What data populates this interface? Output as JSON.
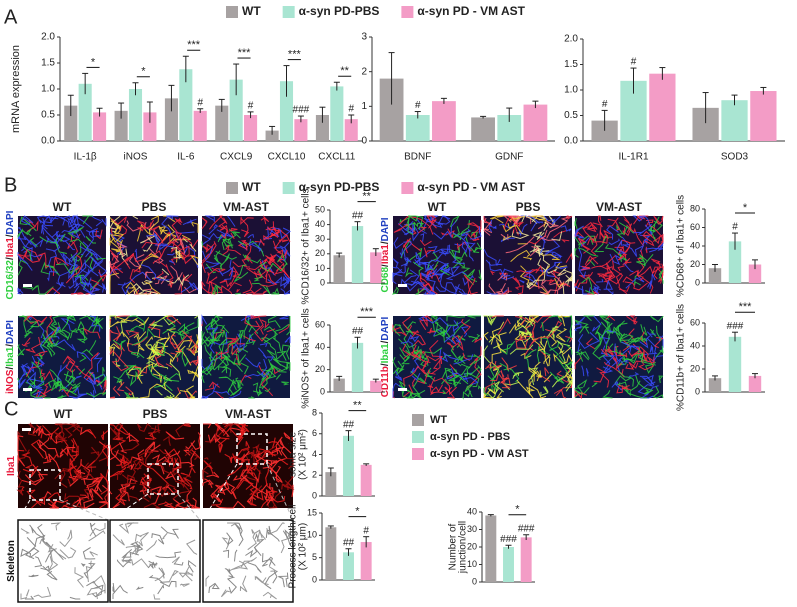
{
  "panels": [
    "A",
    "B",
    "C"
  ],
  "legends": {
    "B": [
      {
        "name": "WT",
        "color": "#a7a2a2"
      },
      {
        "name": "α-syn PD-PBS",
        "color": "#a9e5d2"
      },
      {
        "name": "α-syn PD - VM AST",
        "color": "#f39cc6"
      }
    ],
    "C": [
      {
        "name": "WT",
        "color": "#a7a2a2"
      },
      {
        "name": "α-syn PD - PBS",
        "color": "#a9e5d2"
      },
      {
        "name": "α-syn  PD - VM AST",
        "color": "#f39cc6"
      }
    ]
  },
  "images": {
    "B": {
      "left": {
        "columns": [
          "WT",
          "PBS",
          "VM-AST"
        ],
        "rows": [
          [
            {
              "text": "CD16/32",
              "color": "#2fcf3f"
            },
            {
              "text": "/",
              "color": "#222"
            },
            {
              "text": "Iba1",
              "color": "#e8173a"
            },
            {
              "text": "/",
              "color": "#222"
            },
            {
              "text": "DAPI",
              "color": "#2040c0"
            }
          ],
          [
            {
              "text": "iNOS",
              "color": "#e8173a"
            },
            {
              "text": "/",
              "color": "#222"
            },
            {
              "text": "Iba1",
              "color": "#2fcf3f"
            },
            {
              "text": "/",
              "color": "#222"
            },
            {
              "text": "DAPI",
              "color": "#2040c0"
            }
          ]
        ]
      },
      "right": {
        "columns": [
          "WT",
          "PBS",
          "VM-AST"
        ],
        "rows": [
          [
            {
              "text": "CD68",
              "color": "#2fcf3f"
            },
            {
              "text": "/",
              "color": "#222"
            },
            {
              "text": "Iba1",
              "color": "#e8173a"
            },
            {
              "text": "/",
              "color": "#222"
            },
            {
              "text": "DAPI",
              "color": "#2040c0"
            }
          ],
          [
            {
              "text": "CD11b",
              "color": "#e8173a"
            },
            {
              "text": "/",
              "color": "#222"
            },
            {
              "text": "Iba1",
              "color": "#2fcf3f"
            },
            {
              "text": "/",
              "color": "#222"
            },
            {
              "text": "DAPI",
              "color": "#2040c0"
            }
          ]
        ]
      }
    },
    "C": {
      "columns": [
        "WT",
        "PBS",
        "VM-AST"
      ],
      "rows": [
        [
          {
            "text": "Iba1",
            "color": "#e8173a"
          }
        ],
        [
          {
            "text": "Skeleton",
            "color": "#111"
          }
        ]
      ]
    }
  },
  "chart_data": [
    {
      "type": "bar",
      "ylabel": "mRNA expression",
      "categories": [
        "IL-1β",
        "iNOS",
        "IL-6",
        "CXCL9",
        "CXCL10",
        "CXCL11"
      ],
      "series": [
        {
          "name": "WT",
          "color": "#a7a2a2",
          "values": [
            0.68,
            0.58,
            0.82,
            0.68,
            0.2,
            0.5
          ],
          "errors": [
            0.2,
            0.15,
            0.25,
            0.12,
            0.08,
            0.15
          ]
        },
        {
          "name": "α-syn PD-PBS",
          "color": "#a9e5d2",
          "values": [
            1.1,
            1.0,
            1.38,
            1.18,
            1.15,
            1.05
          ],
          "errors": [
            0.2,
            0.12,
            0.25,
            0.3,
            0.3,
            0.08
          ]
        },
        {
          "name": "α-syn PD - VM AST",
          "color": "#f39cc6",
          "values": [
            0.55,
            0.55,
            0.58,
            0.5,
            0.42,
            0.42
          ],
          "errors": [
            0.08,
            0.2,
            0.04,
            0.06,
            0.06,
            0.08
          ],
          "flags": [
            null,
            null,
            "#",
            "#",
            "###",
            "#"
          ]
        }
      ],
      "brackets": [
        "*",
        "*",
        "***",
        "***",
        "***",
        "**"
      ],
      "ylim": [
        0,
        2
      ],
      "yticks": [
        {
          "value": 0,
          "label": "0.0"
        },
        0.5,
        {
          "value": 1,
          "label": "1.0"
        },
        1.5,
        {
          "value": 2,
          "label": "2.0"
        }
      ]
    },
    {
      "type": "bar",
      "categories": [
        "BDNF",
        "GDNF"
      ],
      "series": [
        {
          "name": "WT",
          "color": "#a7a2a2",
          "values": [
            1.8,
            0.68
          ],
          "errors": [
            0.75,
            0.03
          ]
        },
        {
          "name": "α-syn PD-PBS",
          "color": "#a9e5d2",
          "values": [
            0.75,
            0.75
          ],
          "errors": [
            0.1,
            0.2
          ],
          "flags": [
            "#",
            null
          ]
        },
        {
          "name": "α-syn PD - VM AST",
          "color": "#f39cc6",
          "values": [
            1.15,
            1.05
          ],
          "errors": [
            0.08,
            0.1
          ]
        }
      ],
      "ylim": [
        0,
        3
      ],
      "yticks": [
        0,
        1,
        2,
        3
      ]
    },
    {
      "type": "bar",
      "categories": [
        "IL-1R1",
        "SOD3"
      ],
      "series": [
        {
          "name": "WT",
          "color": "#a7a2a2",
          "values": [
            0.4,
            0.65
          ],
          "errors": [
            0.2,
            0.3
          ],
          "flags": [
            "#",
            null
          ]
        },
        {
          "name": "α-syn PD-PBS",
          "color": "#a9e5d2",
          "values": [
            1.18,
            0.8
          ],
          "errors": [
            0.25,
            0.1
          ],
          "flags": [
            "#",
            null
          ]
        },
        {
          "name": "α-syn PD - VM AST",
          "color": "#f39cc6",
          "values": [
            1.32,
            0.98
          ],
          "errors": [
            0.12,
            0.07
          ]
        }
      ],
      "ylim": [
        0,
        2
      ],
      "yticks": [
        {
          "value": 0,
          "label": "0.0"
        },
        0.5,
        {
          "value": 1,
          "label": "1.0"
        },
        1.5,
        {
          "value": 2,
          "label": "2.0"
        }
      ]
    },
    {
      "type": "bar",
      "ylabel": "%CD16/32+ of Iba1+ cells",
      "categories": [
        null,
        null,
        null
      ],
      "values": [
        19,
        39,
        21
      ],
      "errors": [
        1.5,
        3,
        2.5
      ],
      "colors": [
        "#a7a2a2",
        "#a9e5d2",
        "#f39cc6"
      ],
      "flags": [
        null,
        "##",
        null
      ],
      "bracket": "**",
      "ylim": [
        0,
        50
      ],
      "yticks": [
        0,
        10,
        20,
        30,
        40,
        50
      ]
    },
    {
      "type": "bar",
      "ylabel": "%CD68+ of Iba1+ cells",
      "categories": [
        null,
        null,
        null
      ],
      "values": [
        16,
        45,
        20
      ],
      "errors": [
        4,
        9,
        5
      ],
      "colors": [
        "#a7a2a2",
        "#a9e5d2",
        "#f39cc6"
      ],
      "flags": [
        null,
        "#",
        null
      ],
      "bracket": "*",
      "ylim": [
        0,
        80
      ],
      "yticks": [
        0,
        20,
        40,
        60,
        80
      ]
    },
    {
      "type": "bar",
      "ylabel": "%iNOS+ of Iba1+ cells",
      "categories": [
        null,
        null,
        null
      ],
      "values": [
        12,
        44,
        10
      ],
      "errors": [
        2,
        5,
        1.5
      ],
      "colors": [
        "#a7a2a2",
        "#a9e5d2",
        "#f39cc6"
      ],
      "flags": [
        null,
        "##",
        null
      ],
      "bracket": "***",
      "ylim": [
        0,
        60
      ],
      "yticks": [
        0,
        20,
        40,
        60
      ]
    },
    {
      "type": "bar",
      "ylabel": "%CD11b+ of Iba1+ cells",
      "categories": [
        null,
        null,
        null
      ],
      "values": [
        12,
        48,
        14
      ],
      "errors": [
        2,
        4,
        2
      ],
      "colors": [
        "#a7a2a2",
        "#a9e5d2",
        "#f39cc6"
      ],
      "flags": [
        null,
        "###",
        null
      ],
      "bracket": "***",
      "ylim": [
        0,
        60
      ],
      "yticks": [
        0,
        20,
        40,
        60
      ]
    },
    {
      "type": "bar",
      "ylabel": [
        "soma size",
        "(X 10² μm²)"
      ],
      "categories": [
        null,
        null,
        null
      ],
      "values": [
        2.3,
        5.8,
        3.0
      ],
      "errors": [
        0.4,
        0.5,
        0.1
      ],
      "colors": [
        "#a7a2a2",
        "#a9e5d2",
        "#f39cc6"
      ],
      "flags": [
        null,
        "##",
        null
      ],
      "bracket": "**",
      "ylim": [
        0,
        8
      ],
      "yticks": [
        0,
        2,
        4,
        6,
        8
      ]
    },
    {
      "type": "bar",
      "ylabel": [
        "Process length/cell",
        "(X 10² μm)"
      ],
      "categories": [
        null,
        null,
        null
      ],
      "values": [
        11.8,
        6.2,
        8.5
      ],
      "errors": [
        0.3,
        0.8,
        1.2
      ],
      "colors": [
        "#a7a2a2",
        "#a9e5d2",
        "#f39cc6"
      ],
      "flags": [
        null,
        "##",
        "#"
      ],
      "bracket": "*",
      "ylim": [
        0,
        15
      ],
      "yticks": [
        0,
        5,
        10,
        15
      ]
    },
    {
      "type": "bar",
      "ylabel": [
        "Number of",
        "junction/cell"
      ],
      "categories": [
        null,
        null,
        null
      ],
      "values": [
        38,
        20,
        25.5
      ],
      "errors": [
        0.5,
        1,
        1.5
      ],
      "colors": [
        "#a7a2a2",
        "#a9e5d2",
        "#f39cc6"
      ],
      "flags": [
        null,
        "###",
        "###"
      ],
      "bracket": "*",
      "ylim": [
        0,
        40
      ],
      "yticks": [
        0,
        10,
        20,
        30,
        40
      ]
    }
  ]
}
